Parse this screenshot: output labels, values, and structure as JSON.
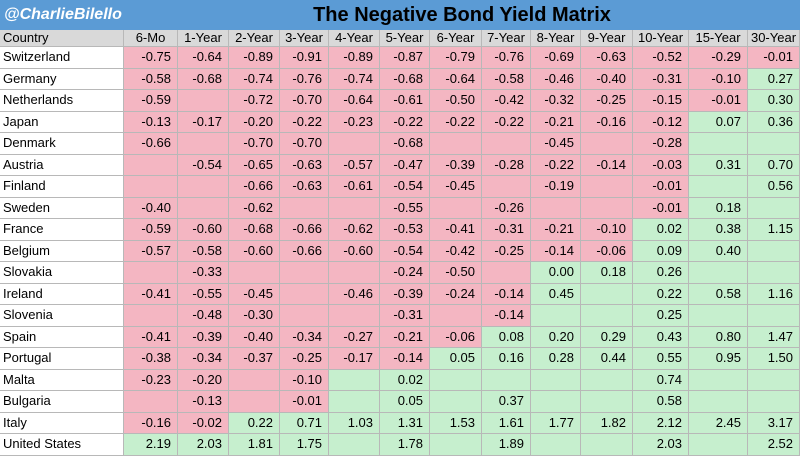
{
  "header": {
    "handle": "@CharlieBilello",
    "title": "The Negative Bond Yield Matrix"
  },
  "colors": {
    "header_bg": "#5b9bd5",
    "negative": "#f4b6c2",
    "positive": "#c6efce",
    "column_header_bg": "#d9d9d9"
  },
  "chart_data": {
    "type": "table",
    "title": "The Negative Bond Yield Matrix",
    "row_header_label": "Country",
    "columns": [
      "6-Mo",
      "1-Year",
      "2-Year",
      "3-Year",
      "4-Year",
      "5-Year",
      "6-Year",
      "7-Year",
      "8-Year",
      "9-Year",
      "10-Year",
      "15-Year",
      "30-Year"
    ],
    "rows": [
      {
        "country": "Switzerland",
        "values": [
          "-0.75",
          "-0.64",
          "-0.89",
          "-0.91",
          "-0.89",
          "-0.87",
          "-0.79",
          "-0.76",
          "-0.69",
          "-0.63",
          "-0.52",
          "-0.29",
          "-0.01"
        ]
      },
      {
        "country": "Germany",
        "values": [
          "-0.58",
          "-0.68",
          "-0.74",
          "-0.76",
          "-0.74",
          "-0.68",
          "-0.64",
          "-0.58",
          "-0.46",
          "-0.40",
          "-0.31",
          "-0.10",
          "0.27"
        ]
      },
      {
        "country": "Netherlands",
        "values": [
          "-0.59",
          "",
          "-0.72",
          "-0.70",
          "-0.64",
          "-0.61",
          "-0.50",
          "-0.42",
          "-0.32",
          "-0.25",
          "-0.15",
          "-0.01",
          "0.30"
        ]
      },
      {
        "country": "Japan",
        "values": [
          "-0.13",
          "-0.17",
          "-0.20",
          "-0.22",
          "-0.23",
          "-0.22",
          "-0.22",
          "-0.22",
          "-0.21",
          "-0.16",
          "-0.12",
          "0.07",
          "0.36"
        ]
      },
      {
        "country": "Denmark",
        "values": [
          "-0.66",
          "",
          "-0.70",
          "-0.70",
          "",
          "-0.68",
          "",
          "",
          "-0.45",
          "",
          "-0.28",
          "",
          ""
        ]
      },
      {
        "country": "Austria",
        "values": [
          "",
          "-0.54",
          "-0.65",
          "-0.63",
          "-0.57",
          "-0.47",
          "-0.39",
          "-0.28",
          "-0.22",
          "-0.14",
          "-0.03",
          "0.31",
          "0.70"
        ]
      },
      {
        "country": "Finland",
        "values": [
          "",
          "",
          "-0.66",
          "-0.63",
          "-0.61",
          "-0.54",
          "-0.45",
          "",
          "-0.19",
          "",
          "-0.01",
          "",
          "0.56"
        ]
      },
      {
        "country": "Sweden",
        "values": [
          "-0.40",
          "",
          "-0.62",
          "",
          "",
          "-0.55",
          "",
          "-0.26",
          "",
          "",
          "-0.01",
          "0.18",
          ""
        ]
      },
      {
        "country": "France",
        "values": [
          "-0.59",
          "-0.60",
          "-0.68",
          "-0.66",
          "-0.62",
          "-0.53",
          "-0.41",
          "-0.31",
          "-0.21",
          "-0.10",
          "0.02",
          "0.38",
          "1.15"
        ]
      },
      {
        "country": "Belgium",
        "values": [
          "-0.57",
          "-0.58",
          "-0.60",
          "-0.66",
          "-0.60",
          "-0.54",
          "-0.42",
          "-0.25",
          "-0.14",
          "-0.06",
          "0.09",
          "0.40",
          ""
        ]
      },
      {
        "country": "Slovakia",
        "values": [
          "",
          "-0.33",
          "",
          "",
          "",
          "-0.24",
          "-0.50",
          "",
          "0.00",
          "0.18",
          "0.26",
          "",
          ""
        ]
      },
      {
        "country": "Ireland",
        "values": [
          "-0.41",
          "-0.55",
          "-0.45",
          "",
          "-0.46",
          "-0.39",
          "-0.24",
          "-0.14",
          "0.45",
          "",
          "0.22",
          "0.58",
          "1.16"
        ]
      },
      {
        "country": "Slovenia",
        "values": [
          "",
          "-0.48",
          "-0.30",
          "",
          "",
          "-0.31",
          "",
          "-0.14",
          "",
          "",
          "0.25",
          "",
          ""
        ]
      },
      {
        "country": "Spain",
        "values": [
          "-0.41",
          "-0.39",
          "-0.40",
          "-0.34",
          "-0.27",
          "-0.21",
          "-0.06",
          "0.08",
          "0.20",
          "0.29",
          "0.43",
          "0.80",
          "1.47"
        ]
      },
      {
        "country": "Portugal",
        "values": [
          "-0.38",
          "-0.34",
          "-0.37",
          "-0.25",
          "-0.17",
          "-0.14",
          "0.05",
          "0.16",
          "0.28",
          "0.44",
          "0.55",
          "0.95",
          "1.50"
        ]
      },
      {
        "country": "Malta",
        "values": [
          "-0.23",
          "-0.20",
          "",
          "-0.10",
          "",
          "0.02",
          "",
          "",
          "",
          "",
          "0.74",
          "",
          ""
        ]
      },
      {
        "country": "Bulgaria",
        "values": [
          "",
          "-0.13",
          "",
          "-0.01",
          "",
          "0.05",
          "",
          "0.37",
          "",
          "",
          "0.58",
          "",
          ""
        ]
      },
      {
        "country": "Italy",
        "values": [
          "-0.16",
          "-0.02",
          "0.22",
          "0.71",
          "1.03",
          "1.31",
          "1.53",
          "1.61",
          "1.77",
          "1.82",
          "2.12",
          "2.45",
          "3.17"
        ]
      },
      {
        "country": "United States",
        "values": [
          "2.19",
          "2.03",
          "1.81",
          "1.75",
          "",
          "1.78",
          "",
          "1.89",
          "",
          "",
          "2.03",
          "",
          "2.52"
        ]
      }
    ],
    "cell_sign": [
      [
        "neg",
        "neg",
        "neg",
        "neg",
        "neg",
        "neg",
        "neg",
        "neg",
        "neg",
        "neg",
        "neg",
        "neg",
        "neg"
      ],
      [
        "neg",
        "neg",
        "neg",
        "neg",
        "neg",
        "neg",
        "neg",
        "neg",
        "neg",
        "neg",
        "neg",
        "neg",
        "pos"
      ],
      [
        "neg",
        "neg",
        "neg",
        "neg",
        "neg",
        "neg",
        "neg",
        "neg",
        "neg",
        "neg",
        "neg",
        "neg",
        "pos"
      ],
      [
        "neg",
        "neg",
        "neg",
        "neg",
        "neg",
        "neg",
        "neg",
        "neg",
        "neg",
        "neg",
        "neg",
        "pos",
        "pos"
      ],
      [
        "neg",
        "neg",
        "neg",
        "neg",
        "neg",
        "neg",
        "neg",
        "neg",
        "neg",
        "neg",
        "neg",
        "pos",
        "pos"
      ],
      [
        "neg",
        "neg",
        "neg",
        "neg",
        "neg",
        "neg",
        "neg",
        "neg",
        "neg",
        "neg",
        "neg",
        "pos",
        "pos"
      ],
      [
        "neg",
        "neg",
        "neg",
        "neg",
        "neg",
        "neg",
        "neg",
        "neg",
        "neg",
        "neg",
        "neg",
        "pos",
        "pos"
      ],
      [
        "neg",
        "neg",
        "neg",
        "neg",
        "neg",
        "neg",
        "neg",
        "neg",
        "neg",
        "neg",
        "neg",
        "pos",
        "pos"
      ],
      [
        "neg",
        "neg",
        "neg",
        "neg",
        "neg",
        "neg",
        "neg",
        "neg",
        "neg",
        "neg",
        "pos",
        "pos",
        "pos"
      ],
      [
        "neg",
        "neg",
        "neg",
        "neg",
        "neg",
        "neg",
        "neg",
        "neg",
        "neg",
        "neg",
        "pos",
        "pos",
        "pos"
      ],
      [
        "neg",
        "neg",
        "neg",
        "neg",
        "neg",
        "neg",
        "neg",
        "neg",
        "pos",
        "pos",
        "pos",
        "pos",
        "pos"
      ],
      [
        "neg",
        "neg",
        "neg",
        "neg",
        "neg",
        "neg",
        "neg",
        "neg",
        "pos",
        "pos",
        "pos",
        "pos",
        "pos"
      ],
      [
        "neg",
        "neg",
        "neg",
        "neg",
        "neg",
        "neg",
        "neg",
        "neg",
        "pos",
        "pos",
        "pos",
        "pos",
        "pos"
      ],
      [
        "neg",
        "neg",
        "neg",
        "neg",
        "neg",
        "neg",
        "neg",
        "pos",
        "pos",
        "pos",
        "pos",
        "pos",
        "pos"
      ],
      [
        "neg",
        "neg",
        "neg",
        "neg",
        "neg",
        "neg",
        "pos",
        "pos",
        "pos",
        "pos",
        "pos",
        "pos",
        "pos"
      ],
      [
        "neg",
        "neg",
        "neg",
        "neg",
        "pos",
        "pos",
        "pos",
        "pos",
        "pos",
        "pos",
        "pos",
        "pos",
        "pos"
      ],
      [
        "neg",
        "neg",
        "neg",
        "neg",
        "pos",
        "pos",
        "pos",
        "pos",
        "pos",
        "pos",
        "pos",
        "pos",
        "pos"
      ],
      [
        "neg",
        "neg",
        "pos",
        "pos",
        "pos",
        "pos",
        "pos",
        "pos",
        "pos",
        "pos",
        "pos",
        "pos",
        "pos"
      ],
      [
        "pos",
        "pos",
        "pos",
        "pos",
        "pos",
        "pos",
        "pos",
        "pos",
        "pos",
        "pos",
        "pos",
        "pos",
        "pos"
      ]
    ]
  }
}
